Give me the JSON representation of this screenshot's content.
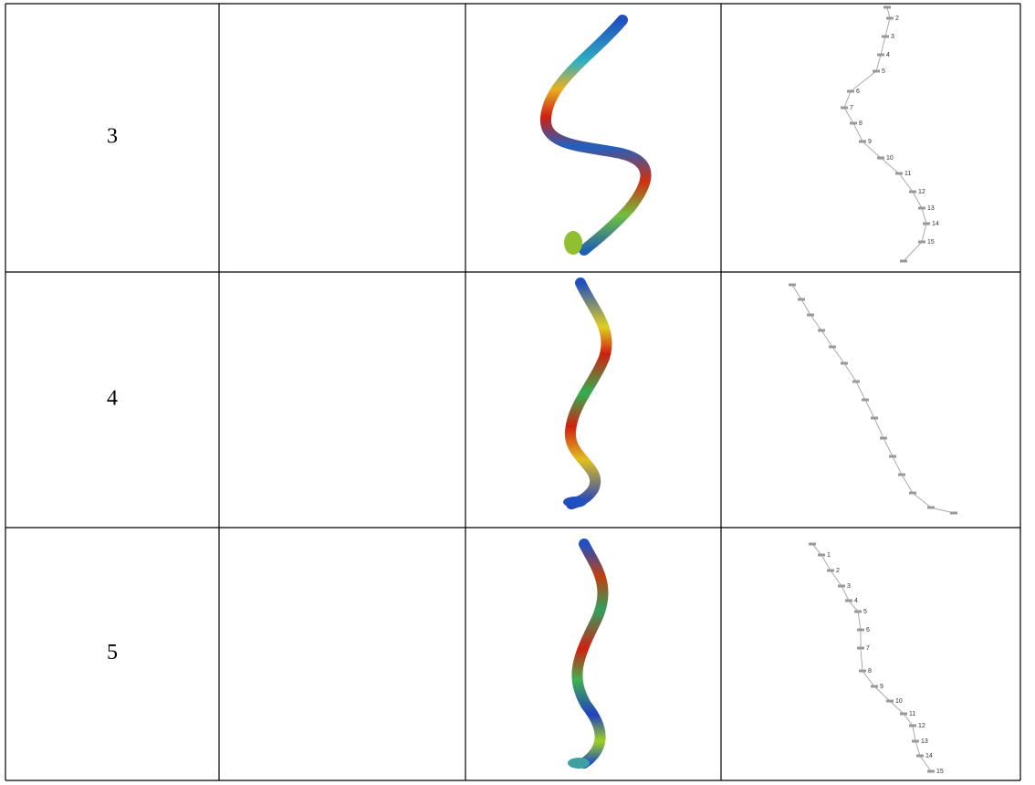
{
  "table": {
    "rows": [
      {
        "label": "3",
        "nodes": [
          "2",
          "3",
          "4",
          "5",
          "6",
          "7",
          "8",
          "9",
          "10",
          "11",
          "12",
          "13",
          "14",
          "15"
        ]
      },
      {
        "label": "4"
      },
      {
        "label": "5",
        "nodes": [
          "1",
          "2",
          "3",
          "4",
          "5",
          "6",
          "7",
          "8",
          "9",
          "10",
          "11",
          "12",
          "13",
          "14",
          "15"
        ]
      }
    ]
  }
}
